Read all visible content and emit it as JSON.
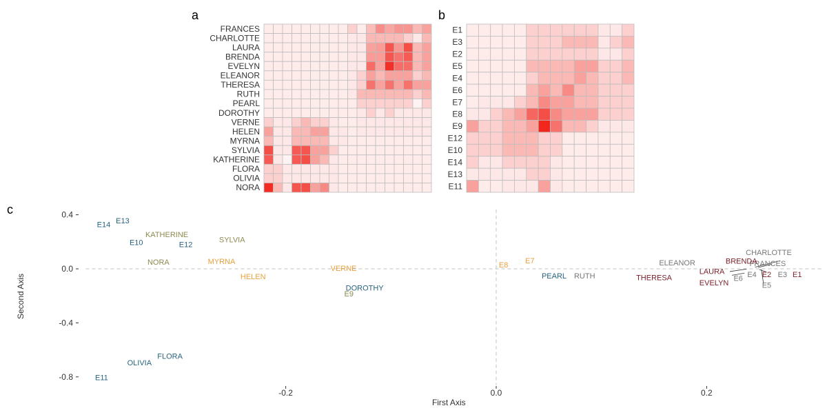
{
  "panels": {
    "a": "a",
    "b": "b",
    "c": "c"
  },
  "chart_data": [
    {
      "type": "heatmap",
      "panel": "a",
      "row_labels": [
        "FRANCES",
        "CHARLOTTE",
        "LAURA",
        "BRENDA",
        "EVELYN",
        "ELEANOR",
        "THERESA",
        "RUTH",
        "PEARL",
        "DOROTHY",
        "VERNE",
        "HELEN",
        "MYRNA",
        "SYLVIA",
        "KATHERINE",
        "FLORA",
        "OLIVIA",
        "NORA"
      ],
      "n_cols": 18,
      "values": [
        [
          0.08,
          0.08,
          0.08,
          0.08,
          0.08,
          0.08,
          0.08,
          0.08,
          0.08,
          0.2,
          0.08,
          0.28,
          0.48,
          0.38,
          0.45,
          0.45,
          0.3,
          0.4
        ],
        [
          0.08,
          0.08,
          0.08,
          0.08,
          0.08,
          0.08,
          0.08,
          0.08,
          0.08,
          0.1,
          0.1,
          0.3,
          0.3,
          0.3,
          0.3,
          0.2,
          0.1,
          0.3
        ],
        [
          0.08,
          0.08,
          0.08,
          0.08,
          0.08,
          0.08,
          0.08,
          0.08,
          0.08,
          0.1,
          0.1,
          0.4,
          0.42,
          0.72,
          0.45,
          0.75,
          0.3,
          0.4
        ],
        [
          0.08,
          0.08,
          0.08,
          0.08,
          0.08,
          0.08,
          0.08,
          0.08,
          0.08,
          0.1,
          0.1,
          0.42,
          0.42,
          0.72,
          0.6,
          0.7,
          0.3,
          0.4
        ],
        [
          0.08,
          0.08,
          0.08,
          0.08,
          0.08,
          0.08,
          0.08,
          0.08,
          0.08,
          0.1,
          0.1,
          0.62,
          0.4,
          0.88,
          0.62,
          0.62,
          0.3,
          0.4
        ],
        [
          0.08,
          0.08,
          0.08,
          0.08,
          0.08,
          0.08,
          0.08,
          0.08,
          0.08,
          0.1,
          0.2,
          0.4,
          0.3,
          0.4,
          0.4,
          0.4,
          0.2,
          0.3
        ],
        [
          0.08,
          0.08,
          0.08,
          0.08,
          0.08,
          0.08,
          0.08,
          0.08,
          0.08,
          0.1,
          0.2,
          0.6,
          0.4,
          0.6,
          0.4,
          0.6,
          0.4,
          0.4
        ],
        [
          0.08,
          0.08,
          0.08,
          0.08,
          0.08,
          0.08,
          0.08,
          0.08,
          0.08,
          0.1,
          0.3,
          0.3,
          0.3,
          0.3,
          0.3,
          0.3,
          0.2,
          0.3
        ],
        [
          0.08,
          0.08,
          0.08,
          0.08,
          0.08,
          0.08,
          0.08,
          0.08,
          0.08,
          0.08,
          0.2,
          0.2,
          0.2,
          0.2,
          0.2,
          0.2,
          0.05,
          0.2
        ],
        [
          0.08,
          0.08,
          0.08,
          0.08,
          0.08,
          0.08,
          0.08,
          0.08,
          0.08,
          0.08,
          0.1,
          0.2,
          0.1,
          0.2,
          0.1,
          0.1,
          0.1,
          0.1
        ],
        [
          0.2,
          0.1,
          0.1,
          0.2,
          0.3,
          0.2,
          0.2,
          0.1,
          0.08,
          0.08,
          0.1,
          0.1,
          0.1,
          0.1,
          0.1,
          0.1,
          0.1,
          0.1
        ],
        [
          0.4,
          0.1,
          0.1,
          0.3,
          0.3,
          0.4,
          0.4,
          0.1,
          0.1,
          0.08,
          0.1,
          0.1,
          0.1,
          0.1,
          0.1,
          0.1,
          0.1,
          0.1
        ],
        [
          0.3,
          0.1,
          0.1,
          0.3,
          0.3,
          0.3,
          0.3,
          0.1,
          0.1,
          0.08,
          0.08,
          0.08,
          0.08,
          0.08,
          0.08,
          0.08,
          0.08,
          0.08
        ],
        [
          0.75,
          0.1,
          0.1,
          0.7,
          0.72,
          0.4,
          0.4,
          0.2,
          0.08,
          0.08,
          0.08,
          0.08,
          0.08,
          0.08,
          0.08,
          0.08,
          0.08,
          0.08
        ],
        [
          0.7,
          0.1,
          0.05,
          0.7,
          0.75,
          0.4,
          0.3,
          0.1,
          0.08,
          0.08,
          0.08,
          0.08,
          0.08,
          0.08,
          0.08,
          0.08,
          0.08,
          0.08
        ],
        [
          0.2,
          0.2,
          0.1,
          0.1,
          0.1,
          0.1,
          0.1,
          0.1,
          0.08,
          0.08,
          0.08,
          0.08,
          0.08,
          0.08,
          0.08,
          0.08,
          0.08,
          0.08
        ],
        [
          0.2,
          0.2,
          0.1,
          0.1,
          0.1,
          0.1,
          0.1,
          0.1,
          0.08,
          0.08,
          0.08,
          0.08,
          0.08,
          0.08,
          0.08,
          0.08,
          0.08,
          0.08
        ],
        [
          0.9,
          0.3,
          0.1,
          0.72,
          0.75,
          0.4,
          0.5,
          0.1,
          0.08,
          0.08,
          0.08,
          0.08,
          0.08,
          0.08,
          0.08,
          0.08,
          0.08,
          0.08
        ]
      ]
    },
    {
      "type": "heatmap",
      "panel": "b",
      "row_labels": [
        "E1",
        "E3",
        "E2",
        "E5",
        "E4",
        "E6",
        "E7",
        "E8",
        "E9",
        "E12",
        "E10",
        "E14",
        "E13",
        "E11"
      ],
      "n_cols": 14,
      "values": [
        [
          0.08,
          0.08,
          0.08,
          0.08,
          0.08,
          0.2,
          0.2,
          0.2,
          0.2,
          0.2,
          0.2,
          0.1,
          0.1,
          0.2
        ],
        [
          0.08,
          0.08,
          0.08,
          0.08,
          0.08,
          0.2,
          0.2,
          0.2,
          0.3,
          0.3,
          0.3,
          0.1,
          0.2,
          0.3
        ],
        [
          0.08,
          0.08,
          0.08,
          0.08,
          0.08,
          0.2,
          0.2,
          0.2,
          0.2,
          0.2,
          0.2,
          0.1,
          0.1,
          0.2
        ],
        [
          0.08,
          0.08,
          0.08,
          0.08,
          0.08,
          0.3,
          0.3,
          0.3,
          0.3,
          0.4,
          0.4,
          0.2,
          0.2,
          0.3
        ],
        [
          0.08,
          0.08,
          0.08,
          0.08,
          0.08,
          0.2,
          0.3,
          0.3,
          0.3,
          0.4,
          0.3,
          0.2,
          0.2,
          0.3
        ],
        [
          0.08,
          0.08,
          0.08,
          0.08,
          0.08,
          0.3,
          0.4,
          0.3,
          0.5,
          0.3,
          0.3,
          0.2,
          0.2,
          0.2
        ],
        [
          0.08,
          0.1,
          0.1,
          0.1,
          0.2,
          0.3,
          0.5,
          0.4,
          0.4,
          0.3,
          0.3,
          0.2,
          0.2,
          0.2
        ],
        [
          0.1,
          0.1,
          0.2,
          0.3,
          0.4,
          0.65,
          0.75,
          0.5,
          0.4,
          0.4,
          0.4,
          0.2,
          0.2,
          0.2
        ],
        [
          0.4,
          0.2,
          0.2,
          0.3,
          0.3,
          0.4,
          0.92,
          0.6,
          0.3,
          0.3,
          0.2,
          0.1,
          0.1,
          0.1
        ],
        [
          0.2,
          0.2,
          0.2,
          0.3,
          0.3,
          0.3,
          0.2,
          0.2,
          0.08,
          0.08,
          0.08,
          0.08,
          0.08,
          0.08
        ],
        [
          0.2,
          0.2,
          0.2,
          0.3,
          0.3,
          0.3,
          0.2,
          0.2,
          0.08,
          0.08,
          0.08,
          0.08,
          0.08,
          0.08
        ],
        [
          0.2,
          0.1,
          0.1,
          0.2,
          0.2,
          0.2,
          0.2,
          0.1,
          0.08,
          0.08,
          0.08,
          0.08,
          0.08,
          0.08
        ],
        [
          0.1,
          0.1,
          0.1,
          0.1,
          0.1,
          0.2,
          0.2,
          0.1,
          0.08,
          0.08,
          0.08,
          0.08,
          0.08,
          0.08
        ],
        [
          0.4,
          0.08,
          0.08,
          0.1,
          0.1,
          0.1,
          0.4,
          0.1,
          0.08,
          0.08,
          0.08,
          0.08,
          0.08,
          0.08
        ]
      ]
    },
    {
      "type": "scatter",
      "panel": "c",
      "xlabel": "First Axis",
      "ylabel": "Second Axis",
      "xlim": [
        -0.39,
        0.31
      ],
      "ylim": [
        -0.86,
        0.44
      ],
      "x_ticks": [
        -0.2,
        0.0,
        0.2
      ],
      "x_tick_labels": [
        "-0.2",
        "0.0",
        "0.2"
      ],
      "y_ticks": [
        0.4,
        0.0,
        -0.4,
        -0.8
      ],
      "y_tick_labels": [
        "0.4",
        "0.0",
        "-0.4",
        "-0.8"
      ],
      "reference_lines": {
        "x": 0,
        "y": 0,
        "style": "dashed"
      },
      "grid": false,
      "colors": {
        "blue": "#27627f",
        "olive": "#8c8a4f",
        "orange": "#e8a03c",
        "gray": "#777777",
        "darkred": "#7a1e28",
        "leader": "#333333"
      },
      "points": [
        {
          "label": "E14",
          "x": -0.373,
          "y": 0.328,
          "color": "blue"
        },
        {
          "label": "E13",
          "x": -0.355,
          "y": 0.356,
          "color": "blue"
        },
        {
          "label": "E10",
          "x": -0.342,
          "y": 0.196,
          "color": "blue"
        },
        {
          "label": "E12",
          "x": -0.295,
          "y": 0.18,
          "color": "blue"
        },
        {
          "label": "E11",
          "x": -0.375,
          "y": -0.804,
          "color": "blue"
        },
        {
          "label": "OLIVIA",
          "x": -0.339,
          "y": -0.694,
          "color": "blue"
        },
        {
          "label": "FLORA",
          "x": -0.31,
          "y": -0.646,
          "color": "blue"
        },
        {
          "label": "DOROTHY",
          "x": -0.125,
          "y": -0.14,
          "color": "blue"
        },
        {
          "label": "PEARL",
          "x": 0.055,
          "y": -0.05,
          "color": "blue"
        },
        {
          "label": "KATHERINE",
          "x": -0.313,
          "y": 0.256,
          "color": "olive"
        },
        {
          "label": "SYLVIA",
          "x": -0.251,
          "y": 0.218,
          "color": "olive"
        },
        {
          "label": "NORA",
          "x": -0.321,
          "y": 0.052,
          "color": "olive"
        },
        {
          "label": "E9",
          "x": -0.14,
          "y": -0.183,
          "color": "olive"
        },
        {
          "label": "MYRNA",
          "x": -0.261,
          "y": 0.056,
          "color": "orange"
        },
        {
          "label": "HELEN",
          "x": -0.231,
          "y": -0.056,
          "color": "orange"
        },
        {
          "label": "VERNE",
          "x": -0.145,
          "y": 0.004,
          "color": "orange"
        },
        {
          "label": "E8",
          "x": 0.007,
          "y": 0.031,
          "color": "orange"
        },
        {
          "label": "E7",
          "x": 0.032,
          "y": 0.06,
          "color": "orange"
        },
        {
          "label": "RUTH",
          "x": 0.084,
          "y": -0.05,
          "color": "gray"
        },
        {
          "label": "ELEANOR",
          "x": 0.172,
          "y": 0.046,
          "color": "gray"
        },
        {
          "label": "CHARLOTTE",
          "x": 0.259,
          "y": 0.122,
          "color": "gray"
        },
        {
          "label": "FRANCES",
          "x": 0.258,
          "y": 0.04,
          "color": "gray"
        },
        {
          "label": "E6",
          "x": 0.23,
          "y": -0.068,
          "color": "gray"
        },
        {
          "label": "E4",
          "x": 0.243,
          "y": -0.04,
          "color": "gray"
        },
        {
          "label": "E3",
          "x": 0.272,
          "y": -0.04,
          "color": "gray"
        },
        {
          "label": "E5",
          "x": 0.257,
          "y": -0.12,
          "color": "gray"
        },
        {
          "label": "E2",
          "x": 0.257,
          "y": -0.04,
          "color": "darkred"
        },
        {
          "label": "E1",
          "x": 0.286,
          "y": -0.04,
          "color": "darkred"
        },
        {
          "label": "BRENDA",
          "x": 0.233,
          "y": 0.058,
          "color": "darkred"
        },
        {
          "label": "LAURA",
          "x": 0.205,
          "y": -0.017,
          "color": "darkred"
        },
        {
          "label": "EVELYN",
          "x": 0.207,
          "y": -0.103,
          "color": "darkred"
        },
        {
          "label": "THERESA",
          "x": 0.15,
          "y": -0.063,
          "color": "darkred"
        }
      ]
    }
  ]
}
